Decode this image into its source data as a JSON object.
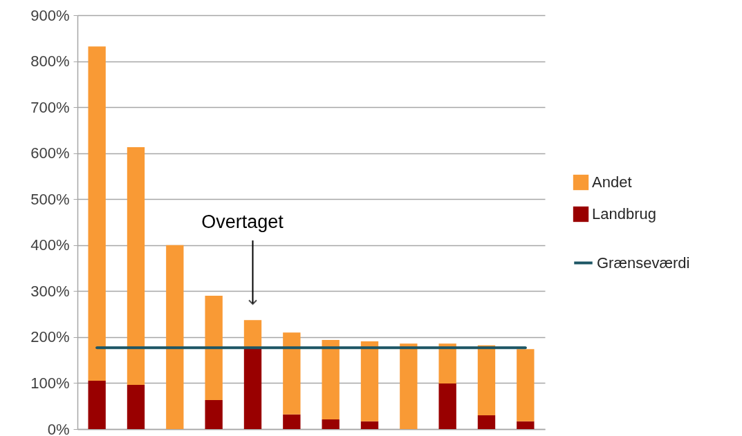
{
  "chart_data": {
    "type": "bar",
    "stacked": true,
    "categories": [
      null,
      null,
      null,
      null,
      null,
      null,
      null,
      null,
      null,
      null,
      null,
      null
    ],
    "series": [
      {
        "name": "Landbrug",
        "color": "#990000",
        "values": [
          105,
          96,
          0,
          63,
          175,
          32,
          21,
          17,
          0,
          99,
          30,
          17
        ]
      },
      {
        "name": "Andet",
        "color": "#f99a35",
        "values": [
          727,
          517,
          400,
          227,
          62,
          178,
          173,
          174,
          186,
          87,
          152,
          157
        ]
      },
      {
        "name": "Grænseværdi",
        "type": "line",
        "color": "#1d5665",
        "values": [
          177,
          177,
          177,
          177,
          177,
          177,
          177,
          177,
          177,
          177,
          177,
          177
        ]
      }
    ],
    "ylim": [
      0,
      900
    ],
    "yticks": [
      {
        "value": 0,
        "label": "0%"
      },
      {
        "value": 100,
        "label": "100%"
      },
      {
        "value": 200,
        "label": "200%"
      },
      {
        "value": 300,
        "label": "300%"
      },
      {
        "value": 400,
        "label": "400%"
      },
      {
        "value": 500,
        "label": "500%"
      },
      {
        "value": 600,
        "label": "600%"
      },
      {
        "value": 700,
        "label": "700%"
      },
      {
        "value": 800,
        "label": "800%"
      },
      {
        "value": 900,
        "label": "900%"
      }
    ],
    "grid": "y",
    "legend": "right",
    "tick_labels": "y",
    "annotations": [
      "Overtaget"
    ]
  }
}
